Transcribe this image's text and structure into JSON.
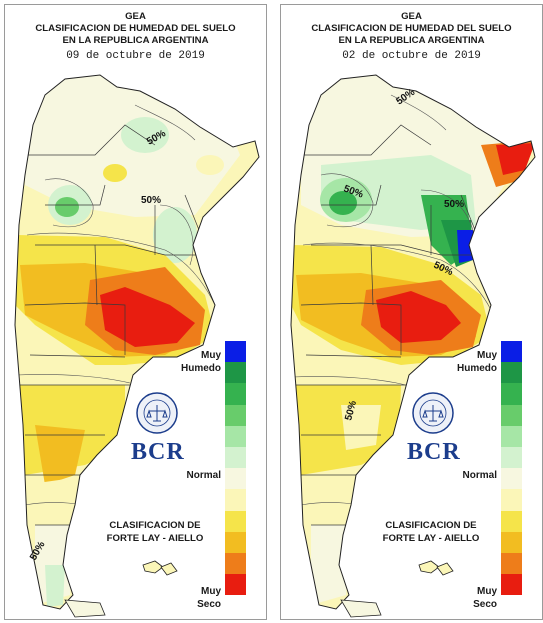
{
  "panels": [
    {
      "org": "GEA",
      "title_line1": "CLASIFICACION DE HUMEDAD DEL SUELO",
      "title_line2": "EN LA REPUBLICA ARGENTINA",
      "date": "09 de octubre de 2019",
      "contour_labels": [
        "50%",
        "50%",
        "50%"
      ]
    },
    {
      "org": "GEA",
      "title_line1": "CLASIFICACION DE HUMEDAD DEL SUELO",
      "title_line2": "EN LA REPUBLICA ARGENTINA",
      "date": "02 de octubre de 2019",
      "contour_labels": [
        "50%",
        "50%",
        "50%",
        "50%",
        "50%"
      ]
    }
  ],
  "legend": {
    "muy_humedo_1": "Muy",
    "muy_humedo_2": "Humedo",
    "normal": "Normal",
    "muy_seco_1": "Muy",
    "muy_seco_2": "Seco",
    "classes_colors": [
      "#0a1ee6",
      "#1e9646",
      "#35b24f",
      "#68cc6b",
      "#a6e6a6",
      "#d3f2cf",
      "#f7f7e0",
      "#fbf6b8",
      "#f5e44a",
      "#f2bd21",
      "#ee7d1a",
      "#e81d10"
    ]
  },
  "credit_line1": "CLASIFICACION DE",
  "credit_line2": "FORTE LAY - AIELLO",
  "logo": {
    "name": "BCR",
    "seal_text": "BOLSA DE COMERCIO DE ROSARIO"
  }
}
